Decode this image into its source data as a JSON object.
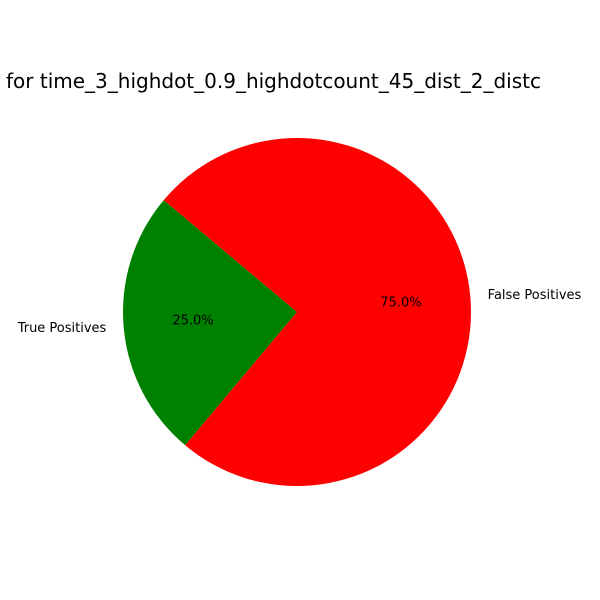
{
  "chart_data": {
    "type": "pie",
    "title": "for time_3_highdot_0.9_highdotcount_45_dist_2_distc",
    "slices": [
      {
        "label": "True Positives",
        "value": 25.0,
        "pct_label": "25.0%",
        "color": "#008000"
      },
      {
        "label": "False Positives",
        "value": 75.0,
        "pct_label": "75.0%",
        "color": "#ff0000"
      }
    ],
    "start_angle_deg": 140,
    "direction": "counterclockwise"
  }
}
